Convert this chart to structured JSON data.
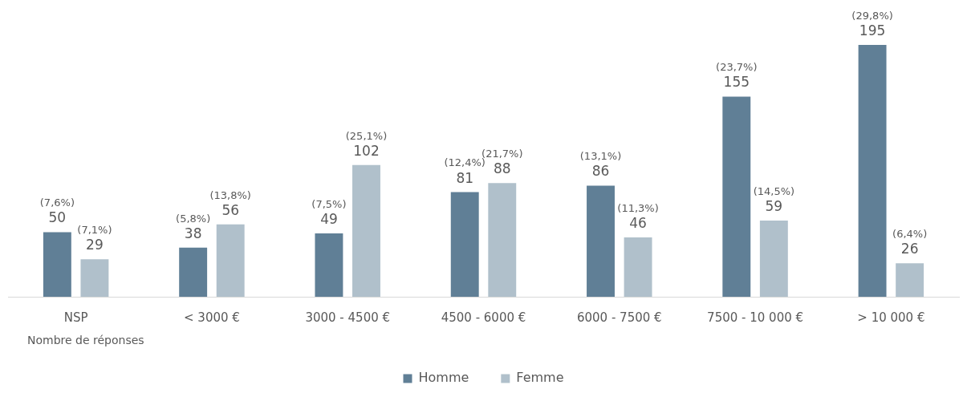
{
  "chart_data": {
    "type": "bar",
    "xlabel": "Nombre de réponses",
    "categories": [
      "NSP",
      "< 3000 €",
      "3000 - 4500 €",
      "4500 - 6000 €",
      "6000 - 7500 €",
      "7500 - 10 000 €",
      "> 10 000 €"
    ],
    "series": [
      {
        "name": "Homme",
        "color": "#607f96",
        "values": [
          50,
          38,
          49,
          81,
          86,
          155,
          195
        ],
        "value_labels": [
          "(7,6%)\n50",
          "(5,8%)\n38",
          "(7,5%)\n49",
          "(12,4%)\n81",
          "(13,1%)\n86",
          "(23,7%)\n155",
          "(29,8%)\n195"
        ]
      },
      {
        "name": "Femme",
        "color": "#b0c0cb",
        "values": [
          29,
          56,
          102,
          88,
          46,
          59,
          26
        ],
        "value_labels": [
          "(7,1%)\n29",
          "(13,8%)\n56",
          "(25,1%)\n102",
          "(21,7%)\n88",
          "(11,3%)\n46",
          "(14,5%)\n59",
          "(6,4%)\n26"
        ]
      }
    ],
    "legend": "bottom",
    "tick_labels": "x",
    "grid": false
  }
}
